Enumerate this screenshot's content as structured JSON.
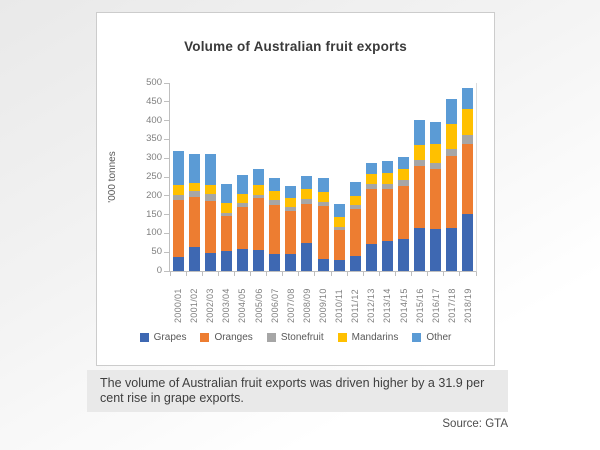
{
  "page": {
    "caption_line1": "The volume of Australian fruit exports was driven higher by a 31.9 per",
    "caption_line2": "cent rise in grape exports.",
    "source_label": "Source: GTA"
  },
  "chart_data": {
    "type": "bar",
    "stacked": true,
    "title": "Volume of Australian fruit exports",
    "xlabel": "",
    "ylabel": "'000 tonnes",
    "ylim": [
      0,
      500
    ],
    "ytick_step": 50,
    "grid": false,
    "legend_position": "bottom",
    "categories": [
      "2000/01",
      "2001/02",
      "2002/03",
      "2003/04",
      "2004/05",
      "2005/06",
      "2006/07",
      "2007/08",
      "2008/09",
      "2009/10",
      "2010/11",
      "2011/12",
      "2012/13",
      "2013/14",
      "2014/15",
      "2015/16",
      "2016/17",
      "2017/18",
      "2018/19"
    ],
    "series": [
      {
        "name": "Grapes",
        "color": "#3E68B2",
        "values": [
          37,
          63,
          48,
          52,
          58,
          55,
          46,
          44,
          75,
          32,
          29,
          40,
          73,
          80,
          84,
          115,
          112,
          115,
          152
        ]
      },
      {
        "name": "Oranges",
        "color": "#ED7D31",
        "values": [
          151,
          133,
          137,
          95,
          113,
          140,
          130,
          116,
          103,
          140,
          79,
          126,
          145,
          139,
          142,
          165,
          160,
          192,
          185
        ]
      },
      {
        "name": "Stonefruit",
        "color": "#A6A6A6",
        "values": [
          15,
          17,
          19,
          8,
          9,
          8,
          12,
          10,
          13,
          12,
          10,
          10,
          13,
          12,
          15,
          16,
          16,
          18,
          25
        ]
      },
      {
        "name": "Mandarins",
        "color": "#FFC000",
        "values": [
          25,
          22,
          26,
          27,
          25,
          25,
          26,
          24,
          27,
          27,
          26,
          24,
          28,
          29,
          30,
          39,
          49,
          65,
          68
        ]
      },
      {
        "name": "Other",
        "color": "#5B9BD5",
        "values": [
          92,
          77,
          82,
          49,
          51,
          44,
          33,
          32,
          36,
          36,
          35,
          36,
          28,
          32,
          32,
          67,
          59,
          67,
          58
        ]
      }
    ]
  }
}
